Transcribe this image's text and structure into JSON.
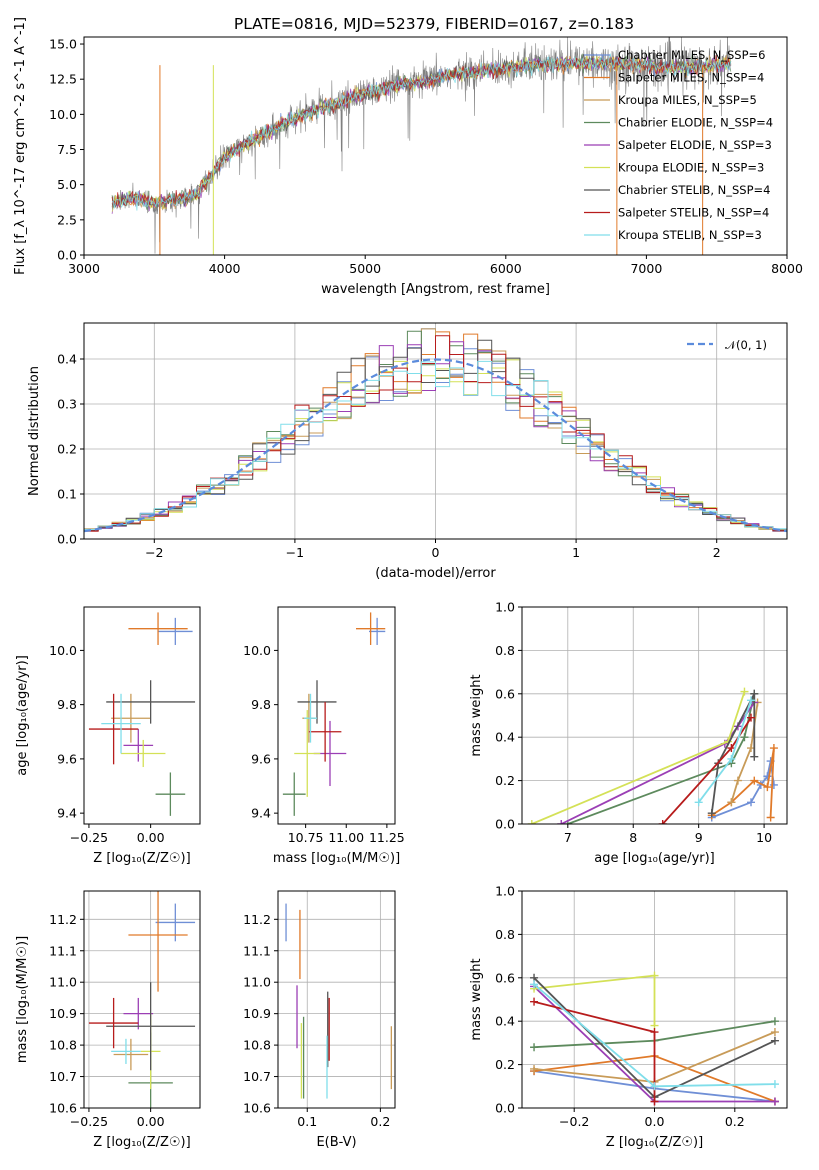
{
  "title": "PLATE=0816, MJD=52379, FIBERID=0167, z=0.183",
  "models": [
    {
      "name": "Chabrier MILES, Nₛₛₚ=6",
      "color": "#6f8fd6"
    },
    {
      "name": "Salpeter MILES, Nₛₛₚ=4",
      "color": "#e07a2a"
    },
    {
      "name": "Kroupa MILES, Nₛₛₚ=5",
      "color": "#c89b58"
    },
    {
      "name": "Chabrier ELODIE, Nₛₛₚ=4",
      "color": "#5d8a5d"
    },
    {
      "name": "Salpeter ELODIE, Nₛₛₚ=3",
      "color": "#9b3fb5"
    },
    {
      "name": "Kroupa ELODIE, Nₛₛₚ=3",
      "color": "#d4e157"
    },
    {
      "name": "Chabrier STELIB, Nₛₛₚ=4",
      "color": "#555555"
    },
    {
      "name": "Salpeter STELIB, Nₛₛₚ=4",
      "color": "#b71c1c"
    },
    {
      "name": "Kroupa STELIB, Nₛₛₚ=3",
      "color": "#80deea"
    }
  ],
  "legend_labels": [
    "Chabrier MILES, N_SSP=6",
    "Salpeter MILES, N_SSP=4",
    "Kroupa MILES, N_SSP=5",
    "Chabrier ELODIE, N_SSP=4",
    "Salpeter ELODIE, N_SSP=3",
    "Kroupa ELODIE, N_SSP=3",
    "Chabrier STELIB, N_SSP=4",
    "Salpeter STELIB, N_SSP=4",
    "Kroupa STELIB, N_SSP=3"
  ],
  "chart_data": [
    {
      "id": "spectrum",
      "type": "line",
      "xlabel": "wavelength [Angstrom, rest frame]",
      "ylabel": "Flux [f_λ 10^-17 erg cm^-2 s^-1 A^-1]",
      "xlim": [
        3000,
        8000
      ],
      "ylim": [
        0,
        15.5
      ],
      "xticks": [
        3000,
        4000,
        5000,
        6000,
        7000,
        8000
      ],
      "yticks": [
        0.0,
        2.5,
        5.0,
        7.5,
        10.0,
        12.5,
        15.0
      ],
      "ytick_labels": [
        "0.0",
        "2.5",
        "5.0",
        "7.5",
        "10.0",
        "12.5",
        "15.0"
      ],
      "data_color": "#808080",
      "continuum_x": [
        3200,
        3300,
        3400,
        3500,
        3600,
        3700,
        3800,
        3900,
        4000,
        4200,
        4400,
        4600,
        4800,
        5000,
        5200,
        5400,
        5600,
        5800,
        6000,
        6200,
        6400,
        6600,
        6800,
        7000,
        7200,
        7400,
        7600
      ],
      "continuum_y": [
        3.6,
        4.0,
        4.0,
        3.6,
        3.9,
        4.0,
        4.4,
        5.5,
        7.0,
        8.2,
        9.2,
        10.2,
        10.8,
        11.5,
        12.0,
        12.3,
        12.8,
        13.0,
        13.3,
        13.5,
        13.6,
        13.7,
        13.6,
        13.5,
        13.3,
        13.4,
        13.6
      ],
      "legend_position": "top-right",
      "grid": false
    },
    {
      "id": "residuals",
      "type": "line",
      "xlabel": "(data-model)/error",
      "ylabel": "Normed distribution",
      "xlim": [
        -2.5,
        2.5
      ],
      "ylim": [
        0,
        0.48
      ],
      "xticks": [
        -2,
        -1,
        0,
        1,
        2
      ],
      "xtick_labels": [
        "−2",
        "−1",
        "0",
        "1",
        "2"
      ],
      "yticks": [
        0.0,
        0.1,
        0.2,
        0.3,
        0.4
      ],
      "ytick_labels": [
        "0.0",
        "0.1",
        "0.2",
        "0.3",
        "0.4"
      ],
      "gaussian": {
        "mean": 0,
        "sigma": 1,
        "label": "𝒩(0, 1)",
        "color": "#5b8bdc"
      },
      "hist_bin_width": 0.1,
      "legend_position": "top-right",
      "grid": true
    },
    {
      "id": "age_vs_Z",
      "type": "scatter",
      "xlabel": "Z [log₁₀(Z/Z☉)]",
      "ylabel": "age  [log₁₀(age/yr)]",
      "xlim": [
        -0.27,
        0.2
      ],
      "ylim": [
        9.36,
        10.16
      ],
      "xticks": [
        -0.25,
        0.0
      ],
      "xtick_labels": [
        "−0.25",
        "0.00"
      ],
      "yticks": [
        9.4,
        9.6,
        9.8,
        10.0
      ],
      "ytick_labels": [
        "9.4",
        "9.6",
        "9.8",
        "10.0"
      ],
      "points": [
        {
          "x": 0.1,
          "xerr": 0.07,
          "y": 10.07,
          "yerr": 0.05,
          "model": 0
        },
        {
          "x": 0.03,
          "xerr": 0.12,
          "y": 10.08,
          "yerr": 0.06,
          "model": 1
        },
        {
          "x": -0.08,
          "xerr": 0.08,
          "y": 9.75,
          "yerr": 0.09,
          "model": 2
        },
        {
          "x": 0.08,
          "xerr": 0.06,
          "y": 9.47,
          "yerr": 0.08,
          "model": 3
        },
        {
          "x": -0.05,
          "xerr": 0.06,
          "y": 9.65,
          "yerr": 0.06,
          "model": 4
        },
        {
          "x": -0.03,
          "xerr": 0.09,
          "y": 9.62,
          "yerr": 0.05,
          "model": 5
        },
        {
          "x": 0.0,
          "xerr": 0.18,
          "y": 9.81,
          "yerr": 0.08,
          "model": 6
        },
        {
          "x": -0.15,
          "xerr": 0.1,
          "y": 9.71,
          "yerr": 0.13,
          "model": 7
        },
        {
          "x": -0.12,
          "xerr": 0.08,
          "y": 9.73,
          "yerr": 0.11,
          "model": 8
        }
      ]
    },
    {
      "id": "age_vs_mass",
      "type": "scatter",
      "xlabel": "mass [log₁₀(M/M☉)]",
      "ylabel": "",
      "xlim": [
        10.58,
        11.3
      ],
      "ylim": [
        9.36,
        10.16
      ],
      "xticks": [
        10.75,
        11.0,
        11.25
      ],
      "xtick_labels": [
        "10.75",
        "11.00",
        "11.25"
      ],
      "yticks": [
        9.4,
        9.6,
        9.8,
        10.0
      ],
      "ytick_labels": [
        "9.4",
        "9.6",
        "9.8",
        "10.0"
      ],
      "points": [
        {
          "x": 11.19,
          "xerr": 0.05,
          "y": 10.07,
          "yerr": 0.05,
          "model": 0
        },
        {
          "x": 11.15,
          "xerr": 0.09,
          "y": 10.08,
          "yerr": 0.06,
          "model": 1
        },
        {
          "x": 10.77,
          "xerr": 0.04,
          "y": 9.75,
          "yerr": 0.09,
          "model": 2
        },
        {
          "x": 10.68,
          "xerr": 0.07,
          "y": 9.47,
          "yerr": 0.08,
          "model": 3
        },
        {
          "x": 10.9,
          "xerr": 0.1,
          "y": 9.62,
          "yerr": 0.12,
          "model": 4
        },
        {
          "x": 10.76,
          "xerr": 0.08,
          "y": 9.62,
          "yerr": 0.16,
          "model": 5
        },
        {
          "x": 10.82,
          "xerr": 0.12,
          "y": 9.81,
          "yerr": 0.08,
          "model": 6
        },
        {
          "x": 10.87,
          "xerr": 0.1,
          "y": 9.7,
          "yerr": 0.11,
          "model": 7
        },
        {
          "x": 10.78,
          "xerr": 0.04,
          "y": 9.75,
          "yerr": 0.09,
          "model": 8
        }
      ]
    },
    {
      "id": "massweight_vs_age",
      "type": "line",
      "xlabel": "age  [log₁₀(age/yr)]",
      "ylabel": "mass weight",
      "xlim": [
        6.3,
        10.35
      ],
      "ylim": [
        0,
        1.0
      ],
      "xticks": [
        7,
        8,
        9,
        10
      ],
      "xtick_labels": [
        "7",
        "8",
        "9",
        "10"
      ],
      "yticks": [
        0.0,
        0.2,
        0.4,
        0.6,
        0.8,
        1.0
      ],
      "ytick_labels": [
        "0.0",
        "0.2",
        "0.4",
        "0.6",
        "0.8",
        "1.0"
      ],
      "grid": true,
      "series": [
        {
          "model": 0,
          "x": [
            9.2,
            9.8,
            9.95,
            10.05,
            10.1,
            10.15
          ],
          "y": [
            0.03,
            0.1,
            0.18,
            0.22,
            0.29,
            0.18
          ]
        },
        {
          "model": 1,
          "x": [
            9.2,
            9.5,
            9.85,
            10.05,
            10.15,
            10.1
          ],
          "y": [
            0.04,
            0.1,
            0.2,
            0.17,
            0.35,
            0.03
          ]
        },
        {
          "model": 2,
          "x": [
            9.5,
            9.6,
            9.8,
            9.9
          ],
          "y": [
            0.1,
            0.2,
            0.35,
            0.56
          ]
        },
        {
          "model": 3,
          "x": [
            7.0,
            9.5,
            9.7,
            9.85
          ],
          "y": [
            0.0,
            0.28,
            0.4,
            0.6
          ]
        },
        {
          "model": 4,
          "x": [
            6.9,
            9.4,
            9.6,
            9.85
          ],
          "y": [
            0.0,
            0.37,
            0.45,
            0.56
          ]
        },
        {
          "model": 5,
          "x": [
            6.45,
            9.45,
            9.7
          ],
          "y": [
            0.0,
            0.38,
            0.61
          ]
        },
        {
          "model": 6,
          "x": [
            9.2,
            9.3,
            9.85,
            9.85
          ],
          "y": [
            0.05,
            0.28,
            0.6,
            0.31
          ]
        },
        {
          "model": 7,
          "x": [
            8.45,
            9.5,
            9.8
          ],
          "y": [
            0.0,
            0.35,
            0.49
          ]
        },
        {
          "model": 8,
          "x": [
            9.0,
            9.5,
            9.8
          ],
          "y": [
            0.1,
            0.3,
            0.57
          ]
        }
      ]
    },
    {
      "id": "mass_vs_Z",
      "type": "scatter",
      "xlabel": "Z [log₁₀(Z/Z☉)]",
      "ylabel": "mass [log₁₀(M/M☉)]",
      "xlim": [
        -0.27,
        0.2
      ],
      "ylim": [
        10.6,
        11.29
      ],
      "xticks": [
        -0.25,
        0.0
      ],
      "xtick_labels": [
        "−0.25",
        "0.00"
      ],
      "yticks": [
        10.6,
        10.7,
        10.8,
        10.9,
        11.0,
        11.1,
        11.2
      ],
      "ytick_labels": [
        "10.6",
        "10.7",
        "10.8",
        "10.9",
        "11.0",
        "11.1",
        "11.2"
      ],
      "grid": true,
      "points": [
        {
          "x": 0.1,
          "xerr": 0.08,
          "y": 11.19,
          "yerr": 0.06,
          "model": 0
        },
        {
          "x": 0.03,
          "xerr": 0.12,
          "y": 11.15,
          "yerr": 0.18,
          "model": 1
        },
        {
          "x": -0.08,
          "xerr": 0.07,
          "y": 10.77,
          "yerr": 0.05,
          "model": 2
        },
        {
          "x": 0.0,
          "xerr": 0.09,
          "y": 10.68,
          "yerr": 0.16,
          "model": 3
        },
        {
          "x": -0.05,
          "xerr": 0.06,
          "y": 10.9,
          "yerr": 0.05,
          "model": 4
        },
        {
          "x": 0.0,
          "xerr": 0.04,
          "y": 10.78,
          "yerr": 0.12,
          "model": 5
        },
        {
          "x": 0.0,
          "xerr": 0.18,
          "y": 10.86,
          "yerr": 0.14,
          "model": 6
        },
        {
          "x": -0.15,
          "xerr": 0.1,
          "y": 10.87,
          "yerr": 0.08,
          "model": 7
        },
        {
          "x": -0.1,
          "xerr": 0.06,
          "y": 10.78,
          "yerr": 0.04,
          "model": 8
        }
      ]
    },
    {
      "id": "mass_vs_EBV",
      "type": "scatter",
      "xlabel": "E(B-V)",
      "ylabel": "",
      "xlim": [
        0.06,
        0.22
      ],
      "ylim": [
        10.6,
        11.29
      ],
      "xticks": [
        0.1,
        0.2
      ],
      "xtick_labels": [
        "0.1",
        "0.2"
      ],
      "yticks": [
        10.6,
        10.7,
        10.8,
        10.9,
        11.0,
        11.1,
        11.2
      ],
      "ytick_labels": [
        "10.6",
        "10.7",
        "10.8",
        "10.9",
        "11.0",
        "11.1",
        "11.2"
      ],
      "grid": true,
      "points": [
        {
          "x": 0.071,
          "y": 11.19,
          "yerr": 0.06,
          "model": 0
        },
        {
          "x": 0.09,
          "y": 11.12,
          "yerr": 0.11,
          "model": 1
        },
        {
          "x": 0.215,
          "y": 10.76,
          "yerr": 0.1,
          "model": 2
        },
        {
          "x": 0.095,
          "y": 10.76,
          "yerr": 0.13,
          "model": 3
        },
        {
          "x": 0.086,
          "y": 10.89,
          "yerr": 0.1,
          "model": 4
        },
        {
          "x": 0.092,
          "y": 10.75,
          "yerr": 0.12,
          "model": 5
        },
        {
          "x": 0.128,
          "y": 10.85,
          "yerr": 0.12,
          "model": 6
        },
        {
          "x": 0.13,
          "y": 10.85,
          "yerr": 0.1,
          "model": 7
        },
        {
          "x": 0.127,
          "y": 10.73,
          "yerr": 0.1,
          "model": 8
        }
      ]
    },
    {
      "id": "massweight_vs_Z",
      "type": "line",
      "xlabel": "Z [log₁₀(Z/Z☉)]",
      "ylabel": "mass weight",
      "xlim": [
        -0.33,
        0.33
      ],
      "ylim": [
        0,
        1.0
      ],
      "xticks": [
        -0.2,
        0.0,
        0.2
      ],
      "xtick_labels": [
        "−0.2",
        "0.0",
        "0.2"
      ],
      "yticks": [
        0.0,
        0.2,
        0.4,
        0.6,
        0.8,
        1.0
      ],
      "ytick_labels": [
        "0.0",
        "0.2",
        "0.4",
        "0.6",
        "0.8",
        "1.0"
      ],
      "grid": true,
      "series": [
        {
          "model": 0,
          "x": [
            -0.3,
            0.0,
            0.3
          ],
          "y": [
            0.17,
            0.09,
            0.03
          ]
        },
        {
          "model": 1,
          "x": [
            -0.3,
            0.0,
            0.3
          ],
          "y": [
            0.17,
            0.24,
            0.03
          ]
        },
        {
          "model": 2,
          "x": [
            -0.3,
            0.0,
            0.3
          ],
          "y": [
            0.18,
            0.12,
            0.35
          ]
        },
        {
          "model": 3,
          "x": [
            -0.3,
            0.0,
            0.3
          ],
          "y": [
            0.28,
            0.31,
            0.4
          ]
        },
        {
          "model": 4,
          "x": [
            -0.3,
            0.0,
            0.3
          ],
          "y": [
            0.56,
            0.03,
            0.03
          ]
        },
        {
          "model": 5,
          "x": [
            -0.3,
            0.0,
            0.0
          ],
          "y": [
            0.55,
            0.61,
            0.38
          ]
        },
        {
          "model": 6,
          "x": [
            -0.3,
            0.0,
            0.3
          ],
          "y": [
            0.6,
            0.05,
            0.31
          ]
        },
        {
          "model": 7,
          "x": [
            -0.3,
            0.0,
            0.0
          ],
          "y": [
            0.49,
            0.35,
            0.03
          ]
        },
        {
          "model": 8,
          "x": [
            -0.3,
            0.0,
            0.3
          ],
          "y": [
            0.57,
            0.1,
            0.11
          ]
        }
      ]
    }
  ]
}
